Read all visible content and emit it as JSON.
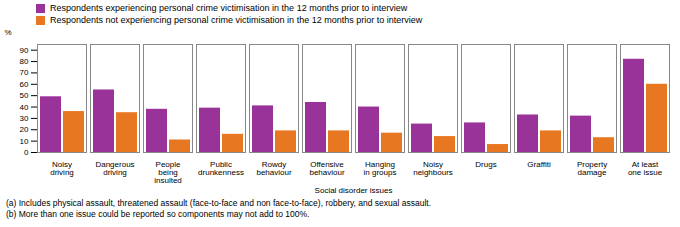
{
  "chart_data": {
    "type": "bar",
    "categories": [
      "Noisy\ndriving",
      "Dangerous\ndriving",
      "People\nbeing\ninsulted",
      "Public\ndrunkenness",
      "Rowdy\nbehaviour",
      "Offensive\nbehaviour",
      "Hanging\nin groups",
      "Noisy\nneighbours",
      "Drugs",
      "Graffiti",
      "Property\ndamage",
      "At least\none issue"
    ],
    "series": [
      {
        "name": "Respondents experiencing personal crime victimisation in the 12 months prior to interview",
        "color": "#993399",
        "values": [
          49,
          55,
          38,
          39,
          41,
          44,
          40,
          25,
          26,
          33,
          32,
          82
        ]
      },
      {
        "name": "Respondents not experiencing personal crime victimisation in the 12 months prior to interview",
        "color": "#E87722",
        "values": [
          36,
          35,
          11,
          16,
          19,
          19,
          17,
          14,
          7,
          19,
          13,
          60
        ]
      }
    ],
    "xlabel": "Social disorder issues",
    "ylabel": "%",
    "ylim": [
      0,
      95
    ],
    "yticks": [
      0,
      10,
      20,
      30,
      40,
      50,
      60,
      70,
      80,
      90
    ],
    "annotations": [
      "(a) Includes physical assault, threatened assault (face-to-face and non face-to-face), robbery, and sexual assault.",
      "(b) More than one issue could be reported so components may not add to 100%."
    ],
    "legend": "upper left",
    "grid": false
  }
}
